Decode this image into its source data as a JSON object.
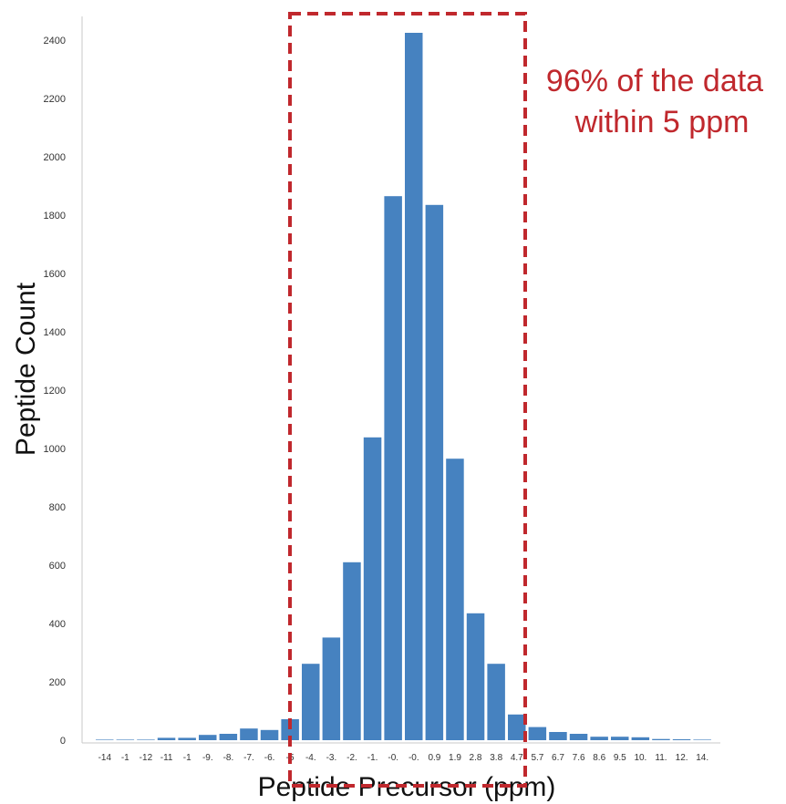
{
  "chart_data": {
    "type": "bar",
    "xlabel": "Peptide Precursor (ppm)",
    "ylabel": "Peptide Count",
    "ylim": [
      0,
      2400
    ],
    "yticks": [
      0,
      200,
      400,
      600,
      800,
      1000,
      1200,
      1400,
      1600,
      1800,
      2000,
      2200,
      2400
    ],
    "grid": false,
    "categories": [
      "-14",
      "-1",
      "-12",
      "-11",
      "-1",
      "-9.",
      "-8.",
      "-7.",
      "-6.",
      "-5",
      "-4.",
      "-3.",
      "-2.",
      "-1.",
      "-0.",
      "-0.",
      "0.9",
      "1.9",
      "2.8",
      "3.8",
      "4.7",
      "5.7",
      "6.7",
      "7.6",
      "8.6",
      "9.5",
      "10.",
      "11.",
      "12.",
      "14."
    ],
    "values": [
      2,
      2,
      2,
      8,
      8,
      18,
      22,
      40,
      35,
      72,
      262,
      352,
      610,
      1038,
      1865,
      2425,
      1835,
      965,
      435,
      262,
      88,
      45,
      28,
      22,
      12,
      12,
      10,
      4,
      3,
      2
    ],
    "bar_color": "#4682c0",
    "annotation": {
      "lines": [
        "96% of the data",
        "within 5 ppm"
      ],
      "color": "#c0282d"
    }
  }
}
